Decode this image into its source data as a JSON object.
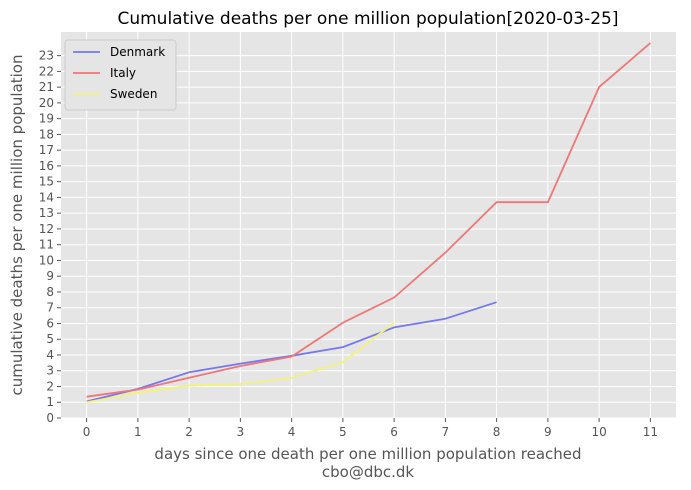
{
  "chart_data": {
    "type": "line",
    "title": "Cumulative deaths per one million population[2020-03-25]",
    "xlabel": "days since one death per one million population reached",
    "ylabel": "cumulative deaths per one million population",
    "footer": "cbo@dbc.dk",
    "xlim": [
      -0.5,
      11.5
    ],
    "ylim": [
      0,
      24.5
    ],
    "x_ticks": [
      0,
      1,
      2,
      3,
      4,
      5,
      6,
      7,
      8,
      9,
      10,
      11
    ],
    "y_ticks": [
      0,
      1,
      2,
      3,
      4,
      5,
      6,
      7,
      8,
      9,
      10,
      11,
      12,
      13,
      14,
      15,
      16,
      17,
      18,
      19,
      20,
      21,
      22,
      23
    ],
    "grid": true,
    "legend_position": "top-left",
    "series": [
      {
        "name": "Denmark",
        "color": "#7777ee",
        "x": [
          0,
          1,
          2,
          3,
          4,
          5,
          6,
          7,
          8
        ],
        "y": [
          1.05,
          1.85,
          2.9,
          3.45,
          3.95,
          4.5,
          5.75,
          6.3,
          7.35
        ]
      },
      {
        "name": "Italy",
        "color": "#ee7777",
        "x": [
          0,
          1,
          2,
          3,
          4,
          5,
          6,
          7,
          8,
          9,
          10,
          11
        ],
        "y": [
          1.35,
          1.8,
          2.55,
          3.3,
          3.9,
          6.05,
          7.65,
          10.5,
          13.7,
          13.7,
          21.0,
          23.8
        ]
      },
      {
        "name": "Sweden",
        "color": "#f2f27a",
        "x": [
          0,
          1,
          2,
          3,
          4,
          5,
          6
        ],
        "y": [
          1.0,
          1.6,
          2.05,
          2.15,
          2.55,
          3.55,
          6.05
        ]
      }
    ]
  }
}
